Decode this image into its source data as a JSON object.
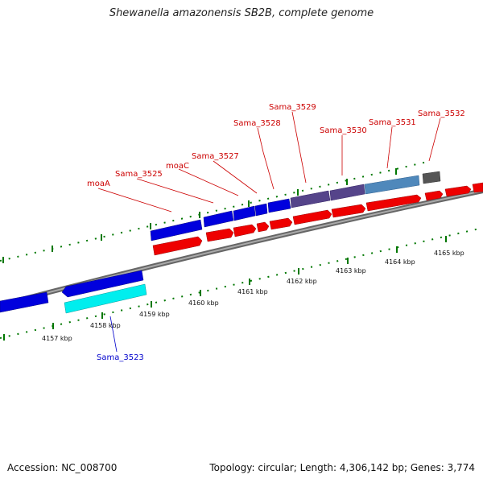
{
  "title": "Shewanella amazonensis SB2B, complete genome",
  "footer": {
    "accession": "Accession: NC_008700",
    "summary": "Topology: circular; Length: 4,306,142 bp; Genes: 3,774"
  },
  "colors": {
    "backbone": "#888888",
    "forward_cds": "#ee0000",
    "reverse_cds": "#0000dd",
    "highlight_gene": "#00eeee",
    "forward_label": "#cc0000",
    "reverse_label": "#0000cc",
    "tick": "#007700"
  },
  "scale_labels": [
    "4157 kbp",
    "4158 kbp",
    "4159 kbp",
    "4160 kbp",
    "4161 kbp",
    "4162 kbp",
    "4163 kbp",
    "4164 kbp",
    "4165 kbp"
  ],
  "gene_labels": [
    "moaA",
    "Sama_3525",
    "moaC",
    "Sama_3527",
    "Sama_3528",
    "Sama_3529",
    "Sama_3530",
    "Sama_3531",
    "Sama_3532",
    "Sama_3523"
  ]
}
